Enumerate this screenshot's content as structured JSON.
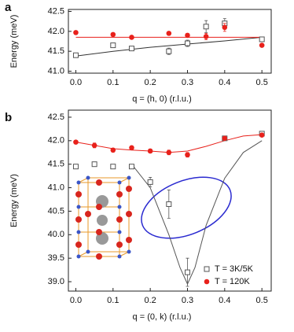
{
  "chart_data": [
    {
      "type": "scatter",
      "panel_label": "a",
      "xlabel": "q = (h, 0)  (r.l.u.)",
      "ylabel": "Energy (meV)",
      "xlim": [
        -0.02,
        0.525
      ],
      "ylim": [
        40.95,
        42.55
      ],
      "xticks": [
        {
          "value": 0,
          "label": "0.0"
        },
        0.1,
        0.2,
        0.3,
        0.4,
        0.5
      ],
      "yticks": [
        {
          "value": 41,
          "label": "41.0"
        },
        41.5,
        {
          "value": 42,
          "label": "42.0"
        },
        42.5
      ],
      "series": [
        {
          "name": "T = 3K/5K",
          "color": "#555555",
          "marker": "open-square",
          "x": [
            0,
            0.1,
            0.15,
            0.25,
            0.3,
            0.35,
            0.4,
            0.5
          ],
          "values": [
            41.4,
            41.65,
            41.57,
            41.5,
            41.7,
            42.12,
            42.2,
            41.8
          ],
          "errors": [
            0.03,
            0.03,
            0.03,
            0.08,
            0.08,
            0.15,
            0.12,
            0.05
          ]
        },
        {
          "name": "T = 120K",
          "color": "#e8211b",
          "marker": "filled-circle",
          "x": [
            0,
            0.1,
            0.15,
            0.25,
            0.3,
            0.35,
            0.4,
            0.5
          ],
          "values": [
            41.97,
            41.92,
            41.85,
            41.95,
            41.9,
            41.87,
            42.1,
            41.65
          ],
          "errors": [
            0.03,
            0.04,
            0.02,
            0.03,
            0.05,
            0.08,
            0.1,
            0.03
          ]
        }
      ],
      "fits": [
        {
          "color": "#333333",
          "x": [
            0,
            0.1,
            0.2,
            0.3,
            0.4,
            0.5
          ],
          "values": [
            41.38,
            41.5,
            41.6,
            41.68,
            41.76,
            41.85
          ]
        },
        {
          "color": "#e8211b",
          "x": [
            0,
            0.5
          ],
          "values": [
            41.85,
            41.85
          ]
        }
      ]
    },
    {
      "type": "scatter",
      "panel_label": "b",
      "xlabel": "q = (0, k)  (r.l.u.)",
      "ylabel": "Energy (meV)",
      "xlim": [
        -0.02,
        0.525
      ],
      "ylim": [
        38.8,
        42.65
      ],
      "xticks": [
        {
          "value": 0,
          "label": "0.0"
        },
        0.1,
        0.2,
        0.3,
        0.4,
        0.5
      ],
      "yticks": [
        {
          "value": 39,
          "label": "39.0"
        },
        39.5,
        {
          "value": 40,
          "label": "40.0"
        },
        40.5,
        {
          "value": 41,
          "label": "41.0"
        },
        41.5,
        {
          "value": 42,
          "label": "42.0"
        },
        42.5
      ],
      "legend": "lower right",
      "series": [
        {
          "name": "T = 3K/5K",
          "color": "#555555",
          "marker": "open-square",
          "x": [
            0,
            0.05,
            0.1,
            0.15,
            0.2,
            0.25,
            0.3,
            0.4,
            0.5
          ],
          "values": [
            41.45,
            41.5,
            41.45,
            41.45,
            41.12,
            40.65,
            39.2,
            42.05,
            42.15
          ],
          "errors": [
            0.03,
            0.03,
            0.02,
            0.02,
            0.1,
            0.3,
            0.3,
            0.04,
            0.03
          ]
        },
        {
          "name": "T = 120K",
          "color": "#e8211b",
          "marker": "filled-circle",
          "x": [
            0,
            0.05,
            0.1,
            0.15,
            0.2,
            0.25,
            0.3,
            0.4,
            0.5
          ],
          "values": [
            41.97,
            41.9,
            41.8,
            41.85,
            41.78,
            41.75,
            41.7,
            42.05,
            42.12
          ],
          "errors": [
            0.03,
            0.05,
            0.04,
            0.04,
            0.04,
            0.05,
            0.05,
            0.04,
            0.03
          ]
        }
      ],
      "fits": [
        {
          "color": "#555555",
          "x": [
            0.15,
            0.2,
            0.25,
            0.28,
            0.3,
            0.32,
            0.35,
            0.4,
            0.45,
            0.5
          ],
          "values": [
            41.5,
            41.0,
            40.0,
            39.3,
            38.95,
            39.3,
            40.2,
            41.2,
            41.75,
            42.0
          ]
        },
        {
          "color": "#e8211b",
          "x": [
            0,
            0.05,
            0.1,
            0.15,
            0.2,
            0.25,
            0.3,
            0.35,
            0.4,
            0.45,
            0.5
          ],
          "values": [
            41.97,
            41.9,
            41.83,
            41.8,
            41.78,
            41.75,
            41.78,
            41.88,
            42.0,
            42.1,
            42.13
          ]
        }
      ]
    }
  ]
}
